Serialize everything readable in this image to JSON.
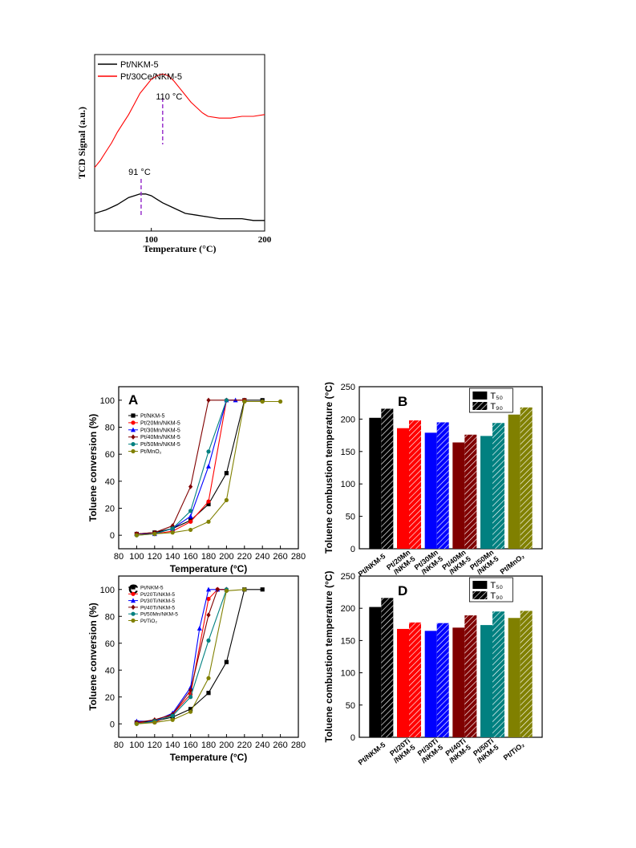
{
  "tpr": {
    "type": "line",
    "ylabel": "TCD Signal (a.u.)",
    "xlabel": "Temperature (°C)",
    "xlim": [
      50,
      200
    ],
    "xticks": [
      100,
      200
    ],
    "series": [
      {
        "name": "Pt/NKM-5",
        "color": "#000000",
        "x": [
          50,
          60,
          70,
          80,
          85,
          90,
          95,
          100,
          105,
          110,
          120,
          130,
          140,
          150,
          160,
          170,
          180,
          190,
          200
        ],
        "y": [
          0.1,
          0.12,
          0.15,
          0.19,
          0.2,
          0.21,
          0.21,
          0.2,
          0.18,
          0.16,
          0.13,
          0.1,
          0.09,
          0.08,
          0.07,
          0.07,
          0.07,
          0.06,
          0.06
        ]
      },
      {
        "name": "Pt/30Ce/NKM-5",
        "color": "#ff0000",
        "x": [
          50,
          55,
          60,
          65,
          70,
          75,
          80,
          85,
          90,
          95,
          100,
          105,
          110,
          115,
          120,
          125,
          130,
          135,
          140,
          145,
          150,
          160,
          170,
          180,
          190,
          200
        ],
        "y": [
          0.36,
          0.4,
          0.45,
          0.5,
          0.56,
          0.61,
          0.66,
          0.72,
          0.78,
          0.82,
          0.86,
          0.88,
          0.89,
          0.88,
          0.85,
          0.81,
          0.77,
          0.73,
          0.7,
          0.67,
          0.65,
          0.64,
          0.64,
          0.65,
          0.65,
          0.66
        ]
      }
    ],
    "annotations": [
      {
        "text": "110 °C",
        "x": 110
      },
      {
        "text": "91 °C",
        "x": 91
      }
    ]
  },
  "chart_data": [
    {
      "panel": "A",
      "type": "line",
      "xlabel": "Temperature (°C)",
      "ylabel": "Toluene conversion (%)",
      "xlim": [
        80,
        280
      ],
      "ylim": [
        -10,
        110
      ],
      "xticks": [
        80,
        100,
        120,
        140,
        160,
        180,
        200,
        220,
        240,
        260,
        280
      ],
      "yticks": [
        0,
        20,
        40,
        60,
        80,
        100
      ],
      "series": [
        {
          "name": "Pt/NKM-5",
          "color": "#000000",
          "marker": "square",
          "x": [
            100,
            120,
            140,
            160,
            180,
            200,
            220,
            240
          ],
          "y": [
            1,
            2,
            5,
            11,
            23,
            46,
            100,
            100
          ]
        },
        {
          "name": "Pt/20Mn/NKM-5",
          "color": "#ff0000",
          "marker": "circle",
          "x": [
            100,
            120,
            140,
            160,
            180,
            200,
            220
          ],
          "y": [
            1,
            1,
            3,
            10,
            25,
            100,
            100
          ]
        },
        {
          "name": "Pt/30Mn/NKM-5",
          "color": "#0000ff",
          "marker": "triangle",
          "x": [
            100,
            120,
            140,
            160,
            180,
            200,
            210
          ],
          "y": [
            1,
            1,
            5,
            14,
            51,
            100,
            100
          ]
        },
        {
          "name": "Pt/40Mn/NKM-5",
          "color": "#800000",
          "marker": "diamond",
          "x": [
            100,
            120,
            140,
            160,
            180,
            200,
            220
          ],
          "y": [
            1,
            2,
            7,
            36,
            100,
            100,
            100
          ]
        },
        {
          "name": "Pt/50Mn/NKM-5",
          "color": "#008080",
          "marker": "circle",
          "x": [
            100,
            120,
            140,
            160,
            180,
            200
          ],
          "y": [
            0,
            1,
            5,
            18,
            62,
            100
          ]
        },
        {
          "name": "Pt/MnO₂",
          "color": "#808000",
          "marker": "circle",
          "x": [
            100,
            120,
            140,
            160,
            180,
            200,
            220,
            240,
            260
          ],
          "y": [
            0,
            1,
            2,
            4,
            10,
            26,
            99,
            99,
            99
          ]
        }
      ]
    },
    {
      "panel": "B",
      "type": "bar",
      "ylabel": "Toluene combustion temperature (°C)",
      "ylim": [
        0,
        250
      ],
      "yticks": [
        0,
        50,
        100,
        150,
        200,
        250
      ],
      "legend": [
        "T₅₀",
        "T₉₀"
      ],
      "categories": [
        "Pt/NKM-5",
        "Pt/20Mn /NKM-5",
        "Pt/30Mn /NKM-5",
        "Pt/40Mn /NKM-5",
        "Pt/50Mn /NKM-5",
        "Pt/MnO₂"
      ],
      "colors": [
        "#000000",
        "#ff0000",
        "#0000ff",
        "#800000",
        "#008080",
        "#808000"
      ],
      "series": [
        {
          "name": "T₅₀",
          "values": [
            202,
            186,
            179,
            164,
            174,
            207
          ]
        },
        {
          "name": "T₉₀",
          "values": [
            216,
            198,
            195,
            176,
            194,
            218
          ]
        }
      ]
    },
    {
      "panel": "C",
      "type": "line",
      "xlabel": "Temperature (°C)",
      "ylabel": "Toluene conversion (%)",
      "xlim": [
        80,
        280
      ],
      "ylim": [
        -10,
        110
      ],
      "xticks": [
        80,
        100,
        120,
        140,
        160,
        180,
        200,
        220,
        240,
        260,
        280
      ],
      "yticks": [
        0,
        20,
        40,
        60,
        80,
        100
      ],
      "series": [
        {
          "name": "Pt/NKM-5",
          "color": "#000000",
          "marker": "square",
          "x": [
            100,
            120,
            140,
            160,
            180,
            200,
            220,
            240
          ],
          "y": [
            1,
            2,
            5,
            11,
            23,
            46,
            100,
            100
          ]
        },
        {
          "name": "Pt/20Ti/NKM-5",
          "color": "#ff0000",
          "marker": "circle",
          "x": [
            100,
            120,
            140,
            160,
            180,
            190,
            200
          ],
          "y": [
            1,
            1,
            7,
            22,
            93,
            100,
            100
          ]
        },
        {
          "name": "Pt/30Ti/NKM-5",
          "color": "#0000ff",
          "marker": "triangle",
          "x": [
            100,
            120,
            140,
            160,
            170,
            180,
            190,
            200
          ],
          "y": [
            2,
            2,
            8,
            27,
            71,
            100,
            100,
            100
          ]
        },
        {
          "name": "Pt/40Ti/NKM-5",
          "color": "#800000",
          "marker": "diamond",
          "x": [
            100,
            120,
            140,
            160,
            180,
            190,
            200
          ],
          "y": [
            1,
            3,
            7,
            25,
            81,
            100,
            100
          ]
        },
        {
          "name": "Pt/50Mn/NKM-5",
          "color": "#008080",
          "marker": "circle",
          "x": [
            100,
            120,
            140,
            160,
            180,
            200
          ],
          "y": [
            0,
            2,
            6,
            20,
            62,
            100
          ]
        },
        {
          "name": "Pt/TiO₂",
          "color": "#808000",
          "marker": "circle",
          "x": [
            100,
            120,
            140,
            160,
            180,
            200,
            220
          ],
          "y": [
            0,
            1,
            3,
            9,
            34,
            99,
            100
          ]
        }
      ]
    },
    {
      "panel": "D",
      "type": "bar",
      "ylabel": "Toluene combustion temperature (°C)",
      "ylim": [
        0,
        250
      ],
      "yticks": [
        0,
        50,
        100,
        150,
        200,
        250
      ],
      "legend": [
        "T₅₀",
        "T₉₀"
      ],
      "categories": [
        "Pt/NKM-5",
        "Pt/20Ti /NKM-5",
        "Pt/30Ti /NKM-5",
        "Pt/40Ti /NKM-5",
        "Pt/50Ti /NKM-5",
        "Pt/TiO₂"
      ],
      "colors": [
        "#000000",
        "#ff0000",
        "#0000ff",
        "#800000",
        "#008080",
        "#808000"
      ],
      "series": [
        {
          "name": "T₅₀",
          "values": [
            202,
            168,
            165,
            170,
            174,
            185
          ]
        },
        {
          "name": "T₉₀",
          "values": [
            216,
            178,
            177,
            189,
            195,
            196
          ]
        }
      ]
    }
  ]
}
